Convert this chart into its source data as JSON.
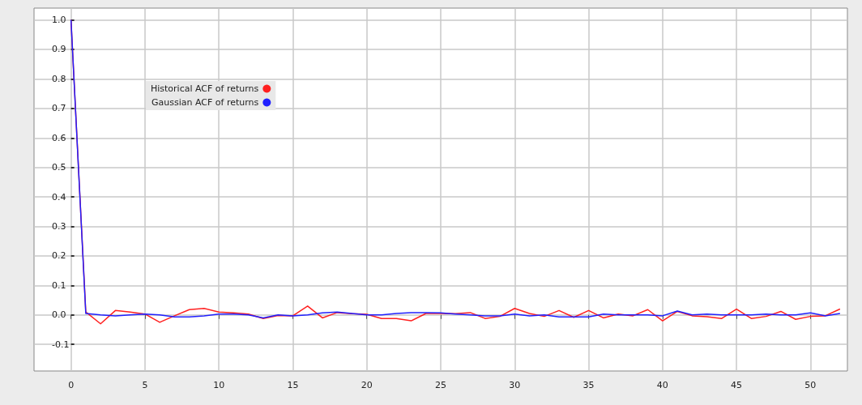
{
  "chart_data": {
    "type": "line",
    "x": [
      0,
      1,
      2,
      3,
      4,
      5,
      6,
      7,
      8,
      9,
      10,
      11,
      12,
      13,
      14,
      15,
      16,
      17,
      18,
      19,
      20,
      21,
      22,
      23,
      24,
      25,
      26,
      27,
      28,
      29,
      30,
      31,
      32,
      33,
      34,
      35,
      36,
      37,
      38,
      39,
      40,
      41,
      42,
      43,
      44,
      45,
      46,
      47,
      48,
      49,
      50,
      51,
      52
    ],
    "series": [
      {
        "name": "Historical ACF of returns",
        "color": "#ff2020",
        "values": [
          1.0,
          0.01,
          -0.03,
          0.015,
          0.01,
          0.003,
          -0.025,
          -0.003,
          0.018,
          0.022,
          0.01,
          0.007,
          0.003,
          -0.012,
          -0.002,
          -0.003,
          0.03,
          -0.01,
          0.008,
          0.004,
          0.002,
          -0.012,
          -0.012,
          -0.02,
          0.005,
          0.005,
          0.004,
          0.008,
          -0.012,
          -0.005,
          0.022,
          0.005,
          -0.005,
          0.015,
          -0.008,
          0.015,
          -0.01,
          0.003,
          -0.003,
          0.018,
          -0.02,
          0.012,
          -0.003,
          -0.006,
          -0.012,
          0.02,
          -0.012,
          -0.005,
          0.012,
          -0.015,
          -0.005,
          -0.003,
          0.02
        ]
      },
      {
        "name": "Gaussian ACF of returns",
        "color": "#2020ff",
        "values": [
          1.0,
          0.005,
          0.0,
          -0.003,
          0.0,
          0.003,
          0.0,
          -0.007,
          -0.007,
          -0.003,
          0.003,
          0.003,
          0.0,
          -0.01,
          0.0,
          -0.003,
          0.0,
          0.007,
          0.01,
          0.005,
          0.0,
          0.0,
          0.005,
          0.008,
          0.008,
          0.007,
          0.003,
          0.0,
          -0.003,
          -0.003,
          0.003,
          -0.003,
          0.0,
          -0.007,
          -0.007,
          -0.007,
          0.003,
          0.0,
          0.0,
          0.0,
          -0.003,
          0.013,
          0.0,
          0.003,
          0.0,
          0.0,
          0.0,
          0.003,
          0.0,
          0.0,
          0.007,
          -0.003,
          0.005
        ]
      }
    ],
    "xlim": [
      -2.5,
      52.5
    ],
    "xticks": [
      0,
      5,
      10,
      15,
      20,
      25,
      30,
      35,
      40,
      45,
      50
    ],
    "ylim": [
      -0.19,
      1.04
    ],
    "yticks": [
      {
        "value": -0.1,
        "label": "-0.1"
      },
      {
        "value": 0,
        "label": "0.0"
      },
      {
        "value": 0.1,
        "label": "0.1"
      },
      {
        "value": 0.2,
        "label": "0.2"
      },
      {
        "value": 0.3,
        "label": "0.3"
      },
      {
        "value": 0.4,
        "label": "0.4"
      },
      {
        "value": 0.5,
        "label": "0.5"
      },
      {
        "value": 0.6,
        "label": "0.6"
      },
      {
        "value": 0.7,
        "label": "0.7"
      },
      {
        "value": 0.8,
        "label": "0.8"
      },
      {
        "value": 0.9,
        "label": "0.9"
      },
      {
        "value": 1,
        "label": "1.0"
      }
    ],
    "grid": true,
    "legend": "top left",
    "line_style": "solid"
  }
}
